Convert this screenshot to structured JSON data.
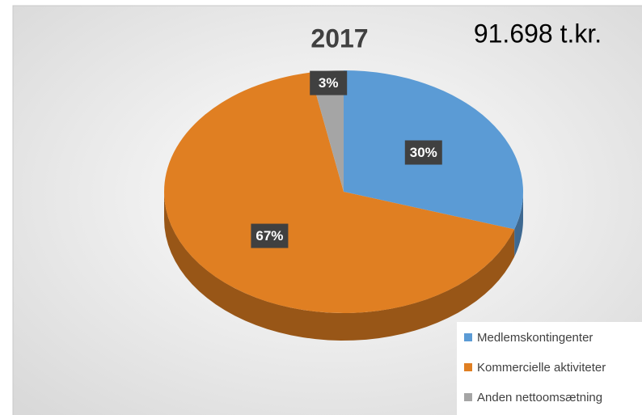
{
  "chart_data": {
    "type": "pie",
    "title": "2017",
    "annotation": "91.698 t.kr.",
    "categories": [
      "Medlemskontingenter",
      "Kommercielle aktiviteter",
      "Anden nettoomsætning"
    ],
    "values": [
      30,
      67,
      3
    ],
    "value_labels": [
      "30%",
      "67%",
      "3%"
    ],
    "colors": [
      "#5b9bd5",
      "#e07f22",
      "#a5a5a5"
    ],
    "legend": "bottom-right"
  }
}
